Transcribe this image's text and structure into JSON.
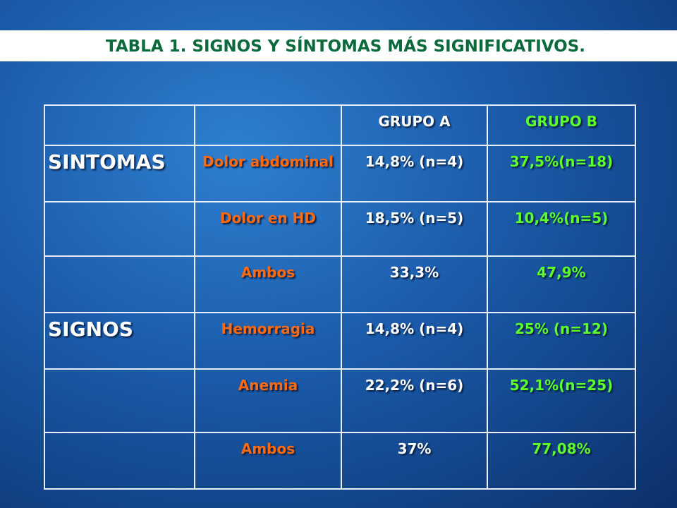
{
  "title": "TABLA 1.  SIGNOS Y SÍNTOMAS MÁS SIGNIFICATIVOS.",
  "table": {
    "header": {
      "a": "GRUPO A",
      "b": "GRUPO B"
    },
    "rows": [
      {
        "group": "SINTOMAS",
        "item": "Dolor abdominal",
        "a": "14,8% (n=4)",
        "b": "37,5%(n=18)"
      },
      {
        "item": "Dolor en HD",
        "a": "18,5% (n=5)",
        "b": "10,4%(n=5)"
      },
      {
        "item": "Ambos",
        "a": "33,3%",
        "b": "47,9%"
      },
      {
        "group": "SIGNOS",
        "item": "Hemorragia",
        "a": "14,8% (n=4)",
        "b": "25% (n=12)"
      },
      {
        "item": "Anemia",
        "a": "22,2% (n=6)",
        "b": "52,1%(n=25)"
      },
      {
        "item": "Ambos",
        "a": "37%",
        "b": "77,08%"
      }
    ]
  }
}
